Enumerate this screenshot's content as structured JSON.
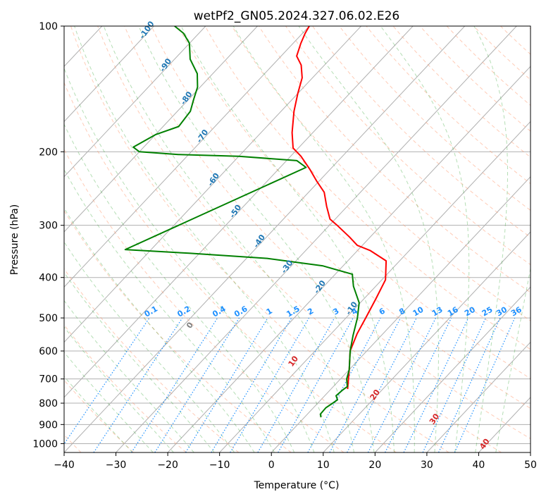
{
  "chart_data": {
    "type": "line",
    "chart_kind": "Skew-T log-P diagram",
    "title": "wetPf2_GN05.2024.327.06.02.E26",
    "xlabel": "Temperature (°C)",
    "ylabel": "Pressure (hPa)",
    "xlim": [
      -40,
      50
    ],
    "ylim": [
      1050,
      100
    ],
    "y_scale": "log",
    "grid": true,
    "x_ticks": [
      "−40",
      "−30",
      "−20",
      "−10",
      "0",
      "10",
      "20",
      "30",
      "40",
      "50"
    ],
    "x_tick_values": [
      -40,
      -30,
      -20,
      -10,
      0,
      10,
      20,
      30,
      40,
      50
    ],
    "y_ticks": [
      "100",
      "200",
      "300",
      "400",
      "500",
      "600",
      "700",
      "800",
      "900",
      "1000"
    ],
    "y_tick_values": [
      100,
      200,
      300,
      400,
      500,
      600,
      700,
      800,
      900,
      1000
    ],
    "series": [
      {
        "role": "temperature",
        "color": "#ff0000",
        "points": [
          [
            3.2,
            740
          ],
          [
            0,
            665
          ],
          [
            -3.2,
            600
          ],
          [
            -5,
            545
          ],
          [
            -6.2,
            500
          ],
          [
            -7.7,
            450
          ],
          [
            -9.3,
            405
          ],
          [
            -12.6,
            365
          ],
          [
            -17.5,
            345
          ],
          [
            -21,
            335
          ],
          [
            -24,
            320
          ],
          [
            -28.5,
            300
          ],
          [
            -31,
            290
          ],
          [
            -34,
            270
          ],
          [
            -37,
            250
          ],
          [
            -40.5,
            235
          ],
          [
            -44,
            220
          ],
          [
            -48,
            205
          ],
          [
            -51,
            196
          ],
          [
            -54,
            180
          ],
          [
            -57.5,
            160
          ],
          [
            -60,
            145
          ],
          [
            -62,
            133
          ],
          [
            -64.5,
            124
          ],
          [
            -67,
            118
          ],
          [
            -68.5,
            110
          ],
          [
            -69.5,
            104
          ],
          [
            -70,
            100
          ]
        ]
      },
      {
        "role": "dewpoint",
        "color": "#008000",
        "points": [
          [
            3.2,
            865
          ],
          [
            2.5,
            850
          ],
          [
            2.4,
            820
          ],
          [
            2.9,
            800
          ],
          [
            3.2,
            785
          ],
          [
            2.2,
            768
          ],
          [
            2.4,
            745
          ],
          [
            2.7,
            730
          ],
          [
            1.2,
            700
          ],
          [
            0,
            665
          ],
          [
            -3.2,
            600
          ],
          [
            -5.5,
            550
          ],
          [
            -7.8,
            500
          ],
          [
            -10.2,
            460
          ],
          [
            -14.3,
            420
          ],
          [
            -16.7,
            393
          ],
          [
            -24,
            375
          ],
          [
            -36,
            360
          ],
          [
            -52,
            350
          ],
          [
            -65,
            343
          ],
          [
            -45,
            218
          ],
          [
            -48,
            210
          ],
          [
            -60,
            205
          ],
          [
            -72,
            203
          ],
          [
            -80,
            200
          ],
          [
            -82,
            195
          ],
          [
            -80,
            182
          ],
          [
            -77,
            174
          ],
          [
            -77.5,
            160
          ],
          [
            -79,
            150
          ],
          [
            -80.5,
            140
          ],
          [
            -83,
            130
          ],
          [
            -87,
            120
          ],
          [
            -90,
            110
          ],
          [
            -93,
            104
          ],
          [
            -96,
            100
          ]
        ]
      }
    ],
    "dry_adiabat_labels": [
      "-100",
      "-90",
      "-80",
      "-70",
      "-60",
      "-50",
      "-40",
      "-30",
      "-20",
      "-10"
    ],
    "dry_adiabat_color": "#1f77b4",
    "moist_adiabat_labels": [
      "0",
      "10",
      "20",
      "30",
      "40"
    ],
    "moist_adiabat_color": "#d62728",
    "mixing_ratio_labels": [
      "0.1",
      "0.2",
      "0.4",
      "0.6",
      "1",
      "1.5",
      "2",
      "3",
      "4",
      "6",
      "8",
      "10",
      "13",
      "16",
      "20",
      "25",
      "30",
      "36"
    ],
    "mixing_ratio_color": "#1e90ff",
    "mixing_ratio_values": [
      0.1,
      0.2,
      0.4,
      0.6,
      1,
      1.5,
      2,
      3,
      4,
      6,
      8,
      10,
      13,
      16,
      20,
      25,
      30,
      36
    ],
    "moist_adiabat_start_temps": [
      0,
      10,
      20,
      30,
      40
    ]
  }
}
